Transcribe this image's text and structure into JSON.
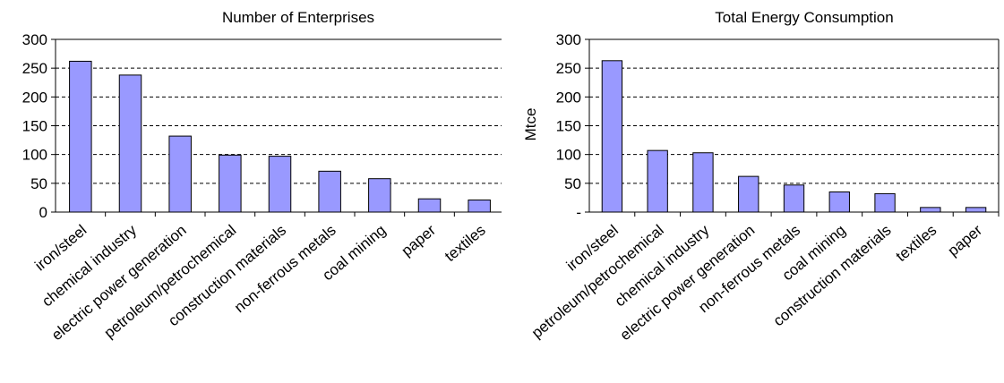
{
  "chart_data": [
    {
      "type": "bar",
      "title": "Number of Enterprises",
      "xlabel": "",
      "ylabel": "",
      "ylim": [
        0,
        300
      ],
      "yticks": [
        0,
        50,
        100,
        150,
        200,
        250,
        300
      ],
      "ytick_labels": [
        "0",
        "50",
        "100",
        "150",
        "200",
        "250",
        "300"
      ],
      "grid": "horizontal dashed",
      "categories": [
        "iron/steel",
        "chemical industry",
        "electric power generation",
        "petroleum/petrochemical",
        "construction materials",
        "non-ferrous metals",
        "coal mining",
        "paper",
        "textiles"
      ],
      "values": [
        262,
        238,
        132,
        99,
        97,
        71,
        58,
        23,
        21
      ],
      "bar_color": "#9999ff"
    },
    {
      "type": "bar",
      "title": "Total Energy Consumption",
      "xlabel": "",
      "ylabel": "Mtce",
      "ylim": [
        0,
        300
      ],
      "yticks": [
        0,
        50,
        100,
        150,
        200,
        250,
        300
      ],
      "ytick_labels": [
        "-",
        "50",
        "100",
        "150",
        "200",
        "250",
        "300"
      ],
      "grid": "horizontal dashed",
      "categories": [
        "iron/steel",
        "petroleum/petrochemical",
        "chemical industry",
        "electric power generation",
        "non-ferrous metals",
        "coal mining",
        "construction materials",
        "textiles",
        "paper"
      ],
      "values": [
        263,
        107,
        103,
        62,
        47,
        35,
        32,
        8,
        8
      ],
      "bar_color": "#9999ff"
    }
  ]
}
